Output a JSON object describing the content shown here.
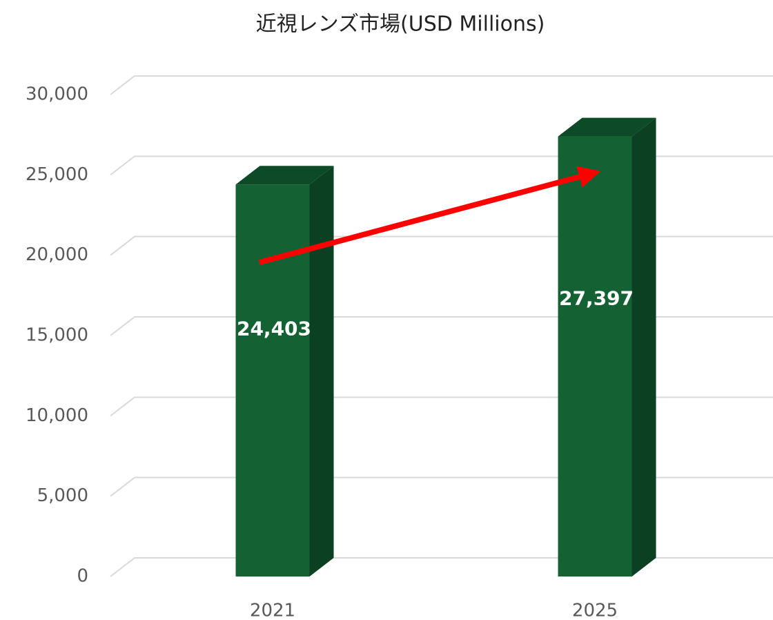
{
  "chart_data": {
    "type": "bar3d",
    "title": "近視レンズ市場(USD Millions)",
    "categories": [
      "2021",
      "2025"
    ],
    "values": [
      24403,
      27397
    ],
    "value_labels": [
      "24,403",
      "27,397"
    ],
    "color": "#146233",
    "ylim": [
      0,
      30000
    ],
    "yticks": [
      0,
      {
        "value": 5000,
        "label": "5,000"
      },
      {
        "value": 10000,
        "label": "10,000"
      },
      {
        "value": 15000,
        "label": "15,000"
      },
      {
        "value": 20000,
        "label": "20,000"
      },
      {
        "value": 25000,
        "label": "25,000"
      },
      {
        "value": 30000,
        "label": "30,000"
      }
    ],
    "grid": true
  }
}
